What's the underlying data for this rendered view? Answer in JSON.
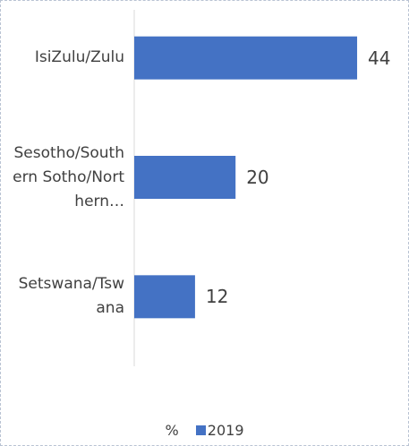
{
  "chart_data": {
    "type": "bar",
    "orientation": "horizontal",
    "categories": [
      "IsiZulu/Zulu",
      "Sesotho/Southern Sotho/Northern…",
      "Setswana/Tswana"
    ],
    "series": [
      {
        "name": "2019",
        "color": "#4472c4",
        "values": [
          44,
          20,
          12
        ]
      }
    ],
    "legend_title": "%",
    "xlim": [
      0,
      50
    ],
    "grid": false,
    "legend": "bottom"
  }
}
